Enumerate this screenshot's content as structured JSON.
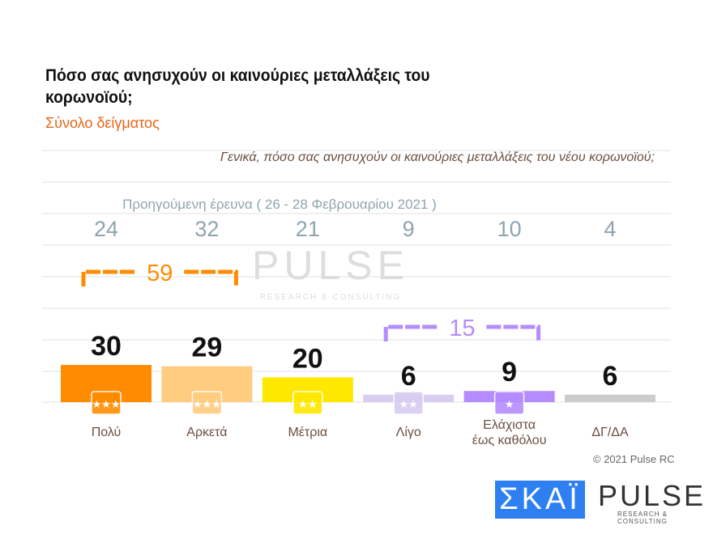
{
  "title": "Πόσο σας ανησυχούν οι καινούριες μεταλλάξεις του κορωνοϊού;",
  "subtitle": "Σύνολο δείγματος",
  "question": "Γενικά, πόσο σας ανησυχούν οι καινούριες μεταλλάξεις του νέου κορωνοϊού;",
  "copyright": "© 2021 Pulse RC",
  "logos": {
    "skai": "ΣΚΑΪ",
    "pulse": "PULSE",
    "pulse_sub": "RESEARCH & CONSULTING"
  },
  "chart_data": {
    "type": "bar",
    "categories": [
      "Πολύ",
      "Αρκετά",
      "Μέτρια",
      "Λίγο",
      "Ελάχιστα έως καθόλου",
      "ΔΓ/ΔΑ"
    ],
    "values": [
      30,
      29,
      20,
      6,
      9,
      6
    ],
    "colors": [
      "#ff8c00",
      "#ffcc80",
      "#ffe800",
      "#d8ccf0",
      "#b48cff",
      "#cccccc"
    ],
    "previous_label": "Προηγούμενη έρευνα ( 26 - 28 Φεβρουαρίου 2021 )",
    "previous_values": [
      24,
      32,
      21,
      9,
      10,
      4
    ],
    "groups": [
      {
        "label": "59",
        "from": 0,
        "to": 1,
        "color": "#ff8c00"
      },
      {
        "label": "15",
        "from": 3,
        "to": 4,
        "color": "#b48cff"
      }
    ],
    "ylim": [
      0,
      100
    ],
    "grid": true
  }
}
